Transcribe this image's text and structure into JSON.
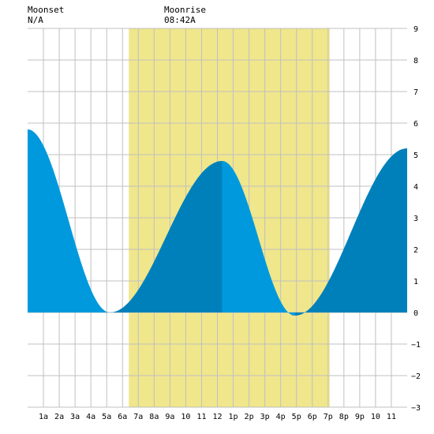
{
  "moonset": {
    "label": "Moonset",
    "value": "N/A"
  },
  "moonrise": {
    "label": "Moonrise",
    "value": "08:42A"
  },
  "chart_data": {
    "type": "area",
    "x_tick_labels": [
      "1a",
      "2a",
      "3a",
      "4a",
      "5a",
      "6a",
      "7a",
      "8a",
      "9a",
      "10",
      "11",
      "12",
      "1p",
      "2p",
      "3p",
      "4p",
      "5p",
      "6p",
      "7p",
      "8p",
      "9p",
      "10",
      "11"
    ],
    "xlim": [
      0,
      24
    ],
    "ylim": [
      -3,
      9
    ],
    "y_ticks": [
      -3,
      -2,
      -1,
      0,
      1,
      2,
      3,
      4,
      5,
      6,
      7,
      8,
      9
    ],
    "grid": true,
    "daylight_hours": [
      6.4,
      19.1
    ],
    "tide_extrema": [
      {
        "hour": 0.0,
        "height": 5.8
      },
      {
        "hour": 5.2,
        "height": 0.0
      },
      {
        "hour": 12.3,
        "height": 4.8
      },
      {
        "hour": 16.9,
        "height": -0.1
      },
      {
        "hour": 24.0,
        "height": 5.2
      }
    ],
    "colors": {
      "daylight": "#f0e68c",
      "tide_light": "#0099dd",
      "tide_dark": "#0080bb",
      "grid": "#c0c0c0"
    }
  }
}
